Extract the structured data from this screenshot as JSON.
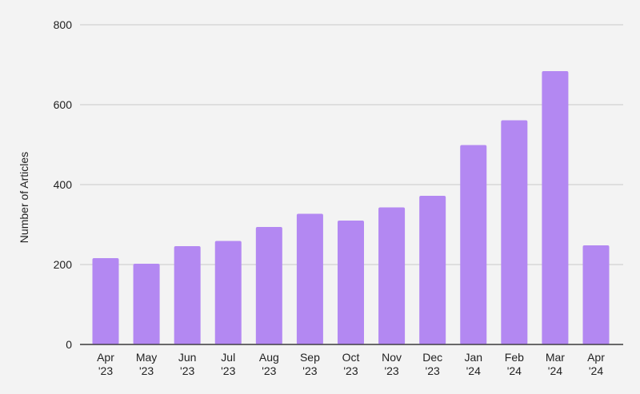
{
  "chart_data": {
    "type": "bar",
    "title": "",
    "xlabel": "",
    "ylabel": "Number of Articles",
    "ylim": [
      0,
      800
    ],
    "yticks": [
      0,
      200,
      400,
      600,
      800
    ],
    "grid": true,
    "bar_color": "#b388f2",
    "categories": [
      [
        "Apr",
        "'23"
      ],
      [
        "May",
        "'23"
      ],
      [
        "Jun",
        "'23"
      ],
      [
        "Jul",
        "'23"
      ],
      [
        "Aug",
        "'23"
      ],
      [
        "Sep",
        "'23"
      ],
      [
        "Oct",
        "'23"
      ],
      [
        "Nov",
        "'23"
      ],
      [
        "Dec",
        "'23"
      ],
      [
        "Jan",
        "'24"
      ],
      [
        "Feb",
        "'24"
      ],
      [
        "Mar",
        "'24"
      ],
      [
        "Apr",
        "'24"
      ]
    ],
    "values": [
      216,
      202,
      246,
      259,
      294,
      327,
      310,
      343,
      372,
      499,
      561,
      684,
      248
    ]
  }
}
